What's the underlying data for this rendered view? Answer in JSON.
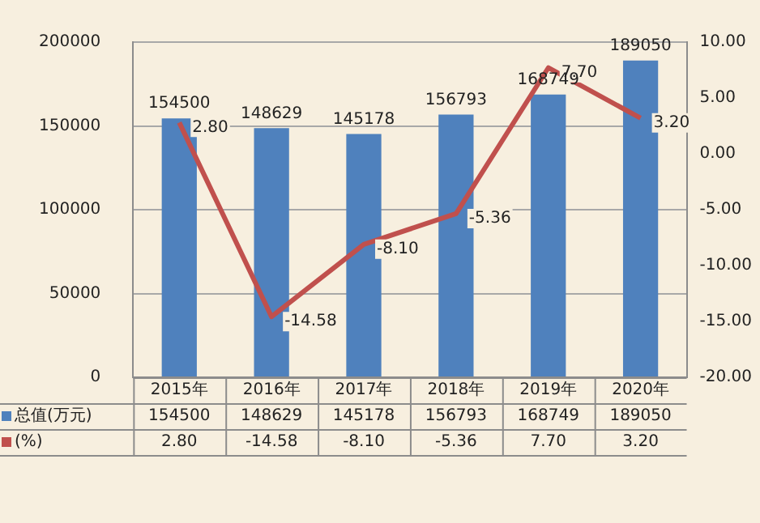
{
  "chart_data": {
    "type": "bar",
    "categories": [
      "2015年",
      "2016年",
      "2017年",
      "2018年",
      "2019年",
      "2020年"
    ],
    "series": [
      {
        "name": "总值(万元)",
        "color": "#4f81bd",
        "values": [
          154500,
          148629,
          145178,
          156793,
          168749,
          189050
        ],
        "value_labels": [
          "154500",
          "148629",
          "145178",
          "156793",
          "168749",
          "189050"
        ]
      },
      {
        "name": "(%)",
        "type": "line",
        "axis": "y2",
        "color": "#c0504d",
        "values": [
          2.8,
          -14.58,
          -8.1,
          -5.36,
          7.7,
          3.2
        ],
        "value_labels": [
          "2.80",
          "-14.58",
          "-8.10",
          "-5.36",
          "7.70",
          "3.20"
        ],
        "marker": "none"
      }
    ],
    "ylim": [
      0,
      200000
    ],
    "yticks": [
      0,
      50000,
      100000,
      150000,
      200000
    ],
    "y2lim": [
      -20,
      10
    ],
    "y2ticks": [
      {
        "value": -20,
        "label": "-20.00"
      },
      {
        "value": -15,
        "label": "-15.00"
      },
      {
        "value": -10,
        "label": "-10.00"
      },
      {
        "value": -5,
        "label": "-5.00"
      },
      {
        "value": 0,
        "label": "0.00"
      },
      {
        "value": 5,
        "label": "5.00"
      },
      {
        "value": 10,
        "label": "10.00"
      }
    ],
    "grid": "y",
    "legend": "bottom left"
  }
}
